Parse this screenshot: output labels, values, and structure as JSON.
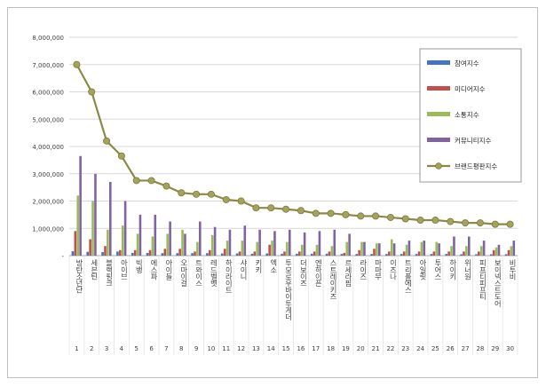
{
  "chart_data": {
    "type": "bar",
    "categories": [
      "방탄소년단",
      "세븐틴",
      "블랙핑크",
      "아이브",
      "빅뱅",
      "에스파",
      "아이들",
      "오마이걸",
      "트와이스",
      "레드벨벳",
      "하이라이트",
      "샤이니",
      "키키",
      "엑소",
      "투모로우바이투게더",
      "더보이즈",
      "엔하이픈",
      "스트레이키즈",
      "르세라핌",
      "라이즈",
      "마마무",
      "이즈나",
      "트리플에스",
      "아일릿",
      "투어스",
      "하이키",
      "위너원",
      "피프티피프티",
      "보이넥스트도어",
      "비투비"
    ],
    "rank_labels": [
      "1",
      "2",
      "3",
      "4",
      "5",
      "6",
      "7",
      "8",
      "9",
      "10",
      "11",
      "12",
      "13",
      "14",
      "15",
      "16",
      "17",
      "18",
      "19",
      "20",
      "21",
      "22",
      "23",
      "24",
      "25",
      "26",
      "27",
      "28",
      "29",
      "30"
    ],
    "series": [
      {
        "name": "참여지수",
        "color": "#4472c4",
        "values": [
          160000,
          140000,
          130000,
          150000,
          100000,
          100000,
          90000,
          90000,
          90000,
          90000,
          80000,
          80000,
          70000,
          80000,
          70000,
          70000,
          70000,
          70000,
          60000,
          60000,
          60000,
          60000,
          60000,
          60000,
          60000,
          60000,
          50000,
          50000,
          50000,
          50000
        ]
      },
      {
        "name": "미디어지수",
        "color": "#c0504d",
        "values": [
          900000,
          600000,
          350000,
          200000,
          200000,
          200000,
          250000,
          250000,
          150000,
          200000,
          250000,
          150000,
          150000,
          400000,
          150000,
          150000,
          150000,
          150000,
          100000,
          200000,
          250000,
          150000,
          150000,
          150000,
          150000,
          150000,
          150000,
          150000,
          200000,
          200000
        ]
      },
      {
        "name": "소통지수",
        "color": "#9bbb59",
        "values": [
          2200000,
          2000000,
          950000,
          1100000,
          800000,
          700000,
          800000,
          950000,
          500000,
          750000,
          550000,
          550000,
          500000,
          550000,
          500000,
          400000,
          400000,
          350000,
          500000,
          500000,
          450000,
          600000,
          400000,
          500000,
          500000,
          350000,
          350000,
          350000,
          300000,
          350000
        ]
      },
      {
        "name": "커뮤니티지수",
        "color": "#8064a2",
        "values": [
          3650000,
          3000000,
          2700000,
          2000000,
          1500000,
          1500000,
          1250000,
          800000,
          1250000,
          1050000,
          950000,
          1100000,
          950000,
          900000,
          950000,
          850000,
          900000,
          950000,
          800000,
          500000,
          450000,
          450000,
          550000,
          550000,
          450000,
          700000,
          700000,
          550000,
          400000,
          550000
        ]
      }
    ],
    "line_series": {
      "name": "브랜드평판지수",
      "color": "#8a8a46",
      "values": [
        7000000,
        6000000,
        4200000,
        3650000,
        2750000,
        2750000,
        2550000,
        2300000,
        2250000,
        2250000,
        2050000,
        2000000,
        1750000,
        1750000,
        1700000,
        1650000,
        1550000,
        1550000,
        1500000,
        1450000,
        1450000,
        1400000,
        1350000,
        1300000,
        1300000,
        1250000,
        1200000,
        1200000,
        1150000,
        1150000
      ]
    },
    "yticks": [
      "-",
      "1,000,000",
      "2,000,000",
      "3,000,000",
      "4,000,000",
      "5,000,000",
      "6,000,000",
      "7,000,000",
      "8,000,000"
    ],
    "ylim": [
      0,
      8000000
    ],
    "grid": true,
    "legend_position": "right"
  }
}
